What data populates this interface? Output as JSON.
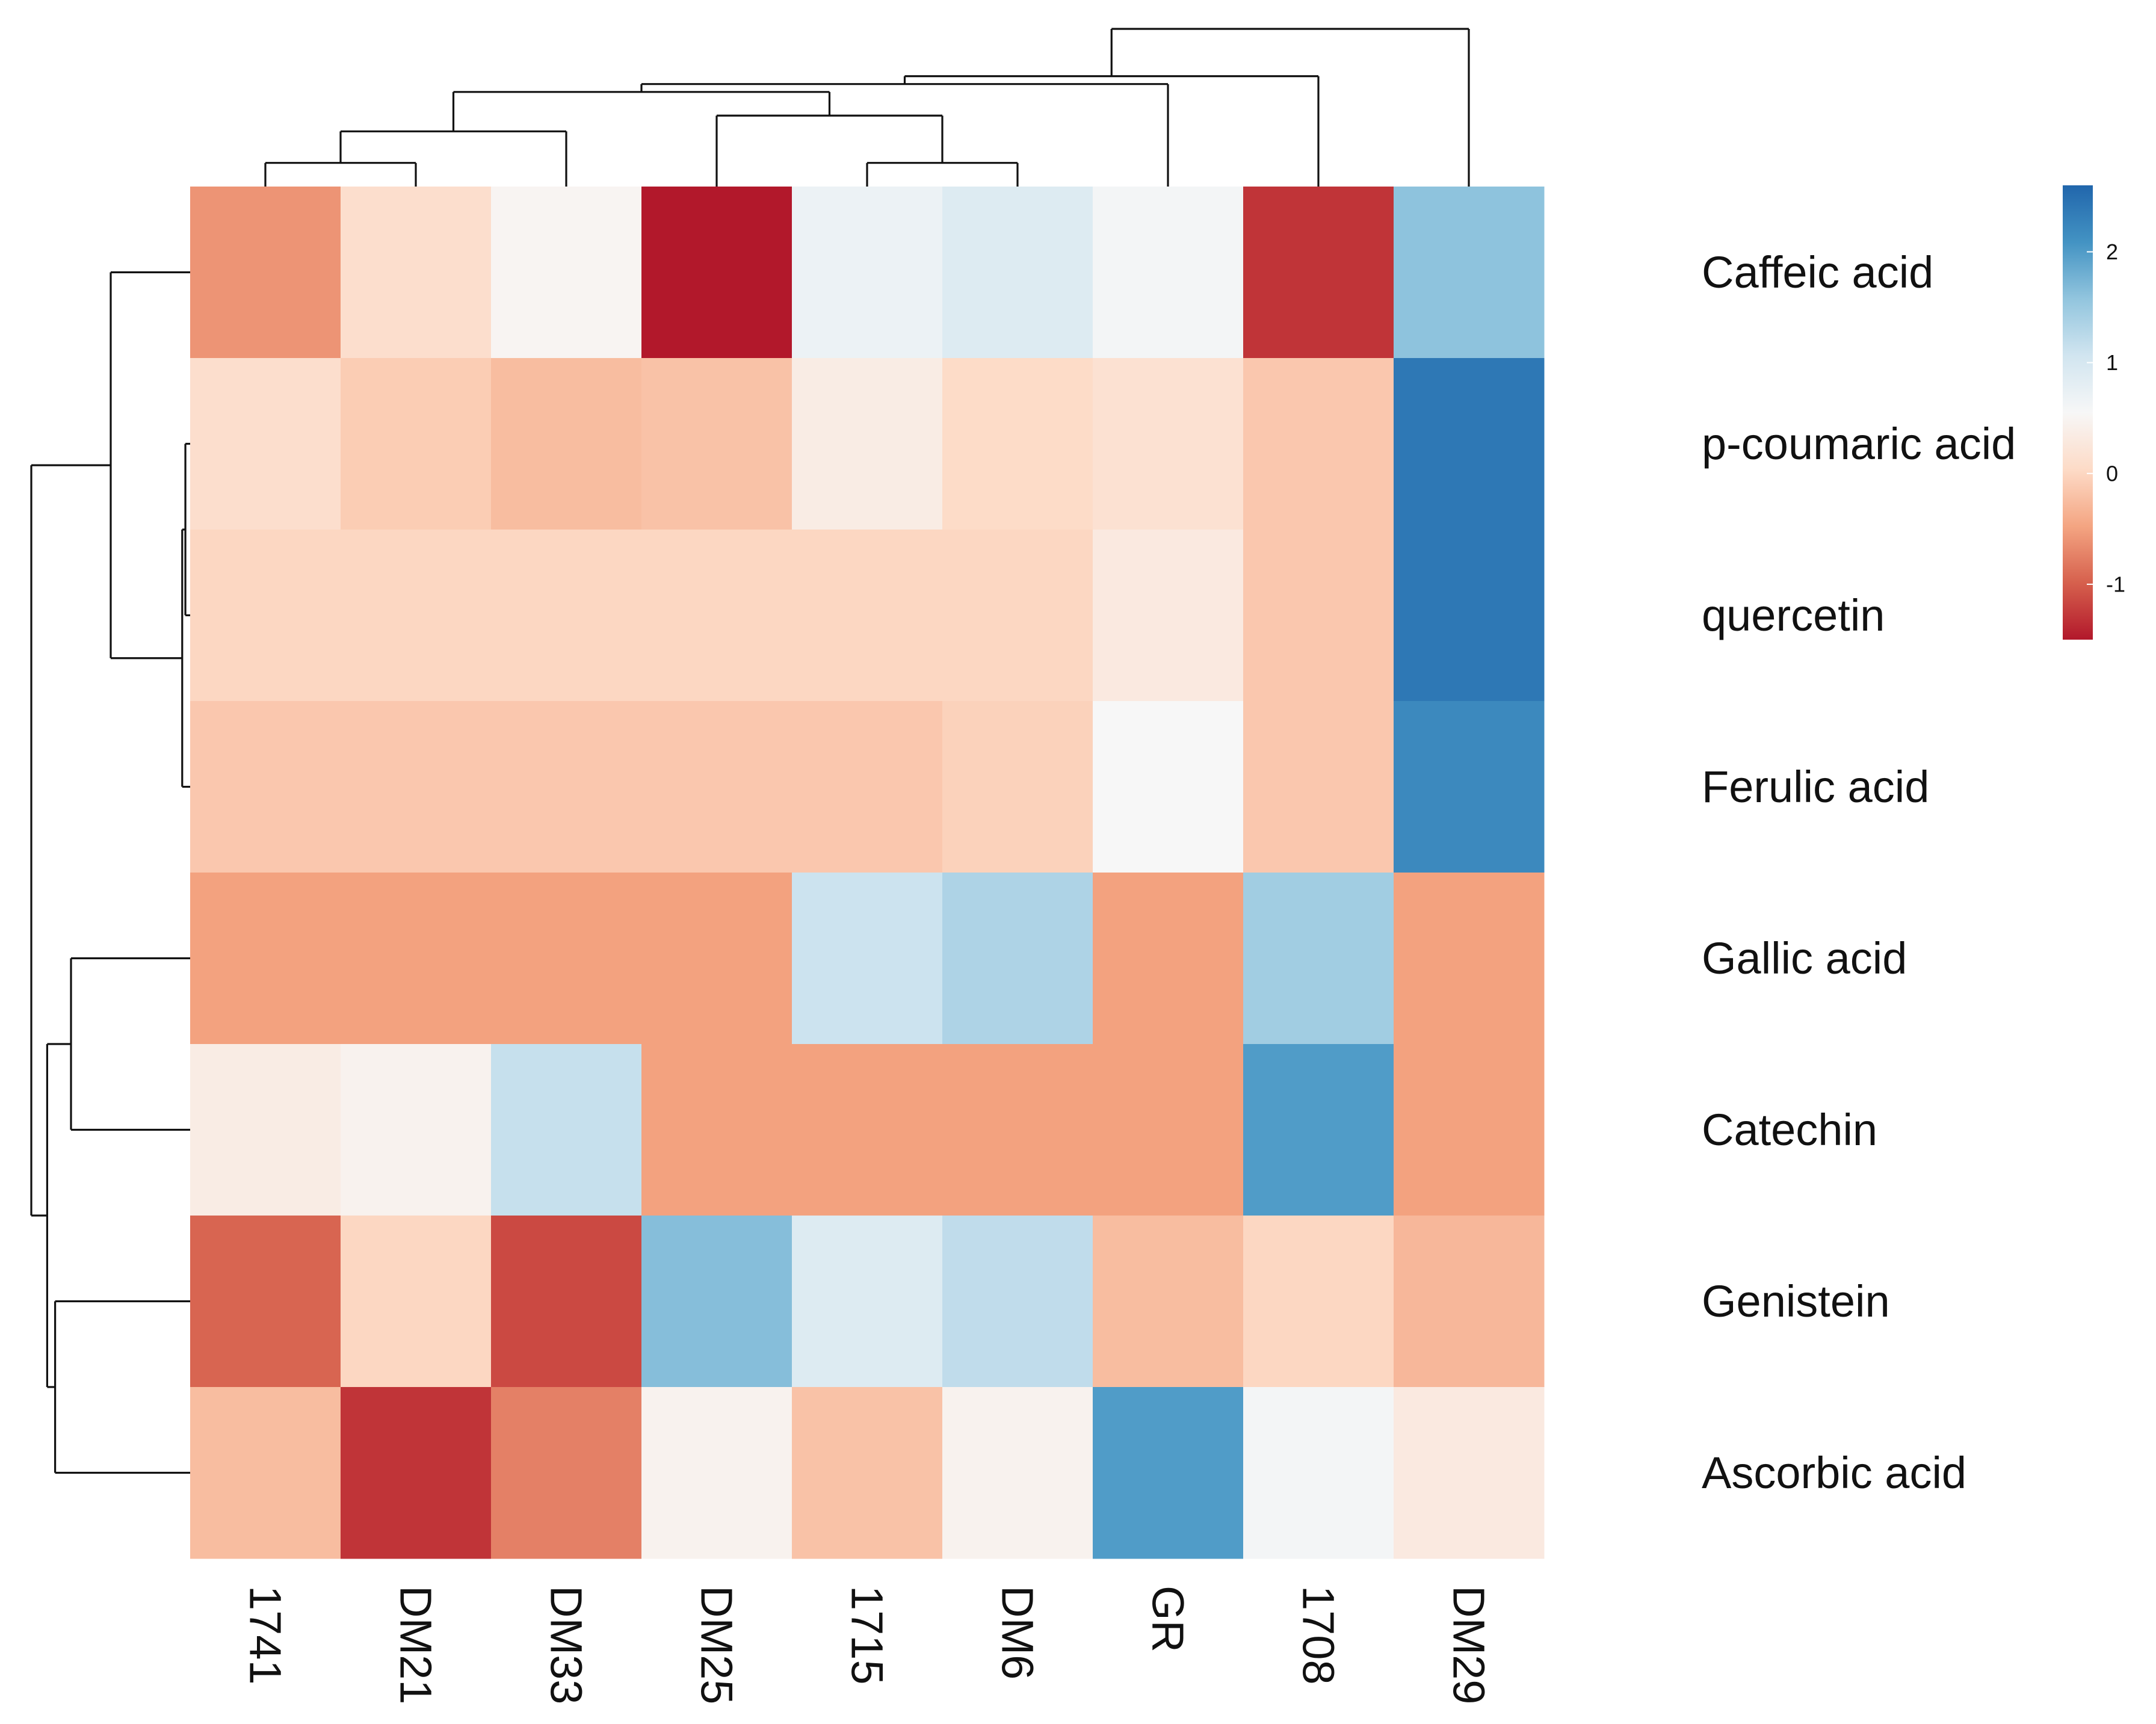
{
  "chart_data": {
    "type": "heatmap",
    "title": "",
    "xlabel": "",
    "ylabel": "",
    "columns": [
      "1741",
      "DM21",
      "DM33",
      "DM25",
      "1715",
      "DM6",
      "GR",
      "1708",
      "DM29"
    ],
    "rows": [
      "Caffeic acid",
      "p-coumaric acid",
      "quercetin",
      "Ferulic acid",
      "Gallic acid",
      "Catechin",
      "Genistein",
      "Ascorbic acid"
    ],
    "values": [
      [
        -0.6,
        0.1,
        0.5,
        -1.5,
        0.7,
        0.9,
        0.6,
        -1.3,
        1.6
      ],
      [
        0.1,
        -0.1,
        -0.25,
        -0.2,
        0.35,
        0.05,
        0.15,
        -0.15,
        2.4
      ],
      [
        0.0,
        0.0,
        0.0,
        0.0,
        0.0,
        0.0,
        0.3,
        -0.15,
        2.4
      ],
      [
        -0.15,
        -0.15,
        -0.15,
        -0.15,
        -0.15,
        -0.05,
        0.55,
        -0.15,
        2.2
      ],
      [
        -0.5,
        -0.5,
        -0.5,
        -0.5,
        1.1,
        1.35,
        -0.5,
        1.45,
        -0.5
      ],
      [
        0.35,
        0.45,
        1.15,
        -0.5,
        -0.5,
        -0.5,
        -0.5,
        2.0,
        -0.5
      ],
      [
        -0.95,
        0.0,
        -1.15,
        1.65,
        0.9,
        1.2,
        -0.25,
        0.0,
        -0.3
      ],
      [
        -0.25,
        -1.3,
        -0.75,
        0.45,
        -0.2,
        0.45,
        2.0,
        0.6,
        0.3
      ]
    ],
    "color_scale": {
      "min": -1.5,
      "max": 2.6,
      "ticks": [
        -1,
        0,
        1,
        2
      ],
      "tick_labels": [
        "-1",
        "0",
        "1",
        "2"
      ],
      "colors": [
        "#b2182b",
        "#d6604d",
        "#f4a582",
        "#fddbc7",
        "#f7f7f7",
        "#d1e5f0",
        "#92c5de",
        "#4393c3",
        "#2166ac"
      ],
      "legend_position": "right"
    },
    "column_dendrogram": {
      "leaf_order": [
        "1741",
        "DM21",
        "DM33",
        "DM25",
        "1715",
        "DM6",
        "GR",
        "1708",
        "DM29"
      ],
      "merges": [
        [
          0,
          1,
          0.15
        ],
        [
          9,
          2,
          0.35
        ],
        [
          4,
          5,
          0.15
        ],
        [
          3,
          11,
          0.45
        ],
        [
          10,
          12,
          0.6
        ],
        [
          13,
          6,
          0.65
        ],
        [
          14,
          7,
          0.7
        ],
        [
          15,
          8,
          1.0
        ]
      ]
    },
    "row_dendrogram": {
      "leaf_order": [
        "Caffeic acid",
        "p-coumaric acid",
        "quercetin",
        "Ferulic acid",
        "Gallic acid",
        "Catechin",
        "Genistein",
        "Ascorbic acid"
      ],
      "merges": [
        [
          1,
          2,
          0.03
        ],
        [
          8,
          3,
          0.05
        ],
        [
          0,
          9,
          0.5
        ],
        [
          4,
          5,
          0.75
        ],
        [
          6,
          7,
          0.85
        ],
        [
          11,
          12,
          0.9
        ],
        [
          10,
          13,
          1.0
        ]
      ]
    }
  }
}
